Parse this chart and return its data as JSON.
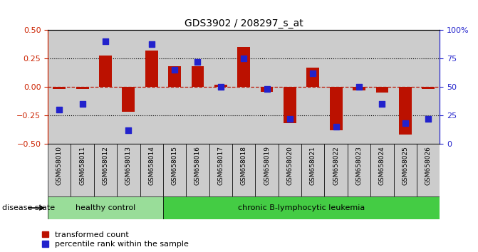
{
  "title": "GDS3902 / 208297_s_at",
  "samples": [
    "GSM658010",
    "GSM658011",
    "GSM658012",
    "GSM658013",
    "GSM658014",
    "GSM658015",
    "GSM658016",
    "GSM658017",
    "GSM658018",
    "GSM658019",
    "GSM658020",
    "GSM658021",
    "GSM658022",
    "GSM658023",
    "GSM658024",
    "GSM658025",
    "GSM658026"
  ],
  "bar_values": [
    -0.02,
    -0.02,
    0.28,
    -0.22,
    0.32,
    0.18,
    0.18,
    0.02,
    0.35,
    -0.04,
    -0.32,
    0.17,
    -0.38,
    -0.03,
    -0.05,
    -0.42,
    -0.02
  ],
  "dot_values": [
    30,
    35,
    90,
    12,
    88,
    65,
    72,
    50,
    75,
    48,
    22,
    62,
    15,
    50,
    35,
    18,
    22
  ],
  "bar_color": "#bb1100",
  "dot_color": "#2222cc",
  "ylim": [
    -0.5,
    0.5
  ],
  "y2lim": [
    0,
    100
  ],
  "yticks": [
    -0.5,
    -0.25,
    0,
    0.25,
    0.5
  ],
  "y2ticks": [
    0,
    25,
    50,
    75,
    100
  ],
  "healthy_count": 5,
  "healthy_label": "healthy control",
  "leukemia_label": "chronic B-lymphocytic leukemia",
  "disease_label": "disease state",
  "legend_bar": "transformed count",
  "legend_dot": "percentile rank within the sample",
  "bg_plot": "#ffffff",
  "bg_label_healthy": "#99dd99",
  "bg_label_leukemia": "#44cc44",
  "bg_samples": "#cccccc",
  "axis_color_left": "#cc2200",
  "axis_color_right": "#2222cc"
}
